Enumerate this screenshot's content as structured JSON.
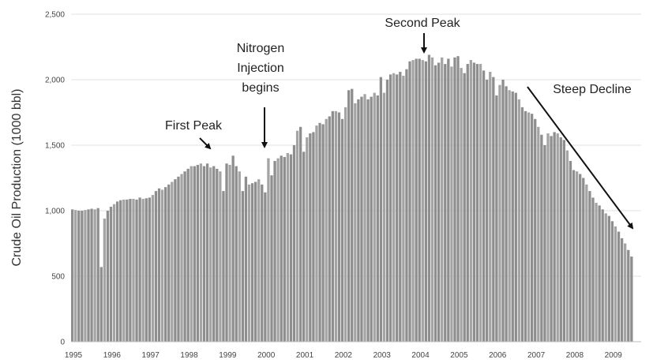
{
  "chart_data": {
    "type": "bar",
    "y_label": "Crude Oil Production (1000 bbl)",
    "color": "#8e8e8e",
    "ylim": [
      0,
      2500
    ],
    "yticks": [
      0,
      500,
      {
        "value": 1000,
        "label": "1,000"
      },
      {
        "value": 1500,
        "label": "1,500"
      },
      {
        "value": 2000,
        "label": "2,000"
      },
      {
        "value": 2500,
        "label": "2,500"
      }
    ],
    "grid": true,
    "categories": [
      "1995",
      null,
      null,
      null,
      null,
      null,
      null,
      null,
      null,
      null,
      null,
      null,
      "1996",
      null,
      null,
      null,
      null,
      null,
      null,
      null,
      null,
      null,
      null,
      null,
      "1997",
      null,
      null,
      null,
      null,
      null,
      null,
      null,
      null,
      null,
      null,
      null,
      "1998",
      null,
      null,
      null,
      null,
      null,
      null,
      null,
      null,
      null,
      null,
      null,
      "1999",
      null,
      null,
      null,
      null,
      null,
      null,
      null,
      null,
      null,
      null,
      null,
      "2000",
      null,
      null,
      null,
      null,
      null,
      null,
      null,
      null,
      null,
      null,
      null,
      "2001",
      null,
      null,
      null,
      null,
      null,
      null,
      null,
      null,
      null,
      null,
      null,
      "2002",
      null,
      null,
      null,
      null,
      null,
      null,
      null,
      null,
      null,
      null,
      null,
      "2003",
      null,
      null,
      null,
      null,
      null,
      null,
      null,
      null,
      null,
      null,
      null,
      "2004",
      null,
      null,
      null,
      null,
      null,
      null,
      null,
      null,
      null,
      null,
      null,
      "2005",
      null,
      null,
      null,
      null,
      null,
      null,
      null,
      null,
      null,
      null,
      null,
      "2006",
      null,
      null,
      null,
      null,
      null,
      null,
      null,
      null,
      null,
      null,
      null,
      "2007",
      null,
      null,
      null,
      null,
      null,
      null,
      null,
      null,
      null,
      null,
      null,
      "2008",
      null,
      null,
      null,
      null,
      null,
      null,
      null,
      null,
      null,
      null,
      null,
      "2009",
      null,
      null,
      null,
      null,
      null,
      null
    ],
    "values": [
      1010,
      1005,
      1000,
      1000,
      1005,
      1010,
      1015,
      1010,
      1020,
      570,
      940,
      1000,
      1030,
      1050,
      1070,
      1080,
      1085,
      1085,
      1090,
      1090,
      1085,
      1100,
      1090,
      1095,
      1100,
      1120,
      1150,
      1170,
      1160,
      1180,
      1200,
      1220,
      1240,
      1260,
      1280,
      1300,
      1320,
      1340,
      1340,
      1350,
      1360,
      1340,
      1360,
      1330,
      1340,
      1320,
      1300,
      1150,
      1360,
      1350,
      1420,
      1340,
      1300,
      1150,
      1260,
      1200,
      1210,
      1220,
      1240,
      1200,
      1140,
      1400,
      1270,
      1380,
      1400,
      1420,
      1410,
      1440,
      1430,
      1500,
      1610,
      1640,
      1450,
      1560,
      1590,
      1600,
      1650,
      1670,
      1660,
      1700,
      1720,
      1760,
      1760,
      1750,
      1700,
      1790,
      1920,
      1930,
      1820,
      1850,
      1870,
      1890,
      1850,
      1870,
      1900,
      1880,
      2020,
      1900,
      2000,
      2040,
      2050,
      2040,
      2060,
      2030,
      2080,
      2140,
      2150,
      2160,
      2160,
      2150,
      2140,
      2190,
      2170,
      2110,
      2130,
      2170,
      2120,
      2160,
      2100,
      2170,
      2180,
      2090,
      2050,
      2120,
      2150,
      2130,
      2120,
      2120,
      2070,
      2000,
      2060,
      2020,
      1880,
      1960,
      2000,
      1950,
      1920,
      1910,
      1900,
      1850,
      1790,
      1760,
      1750,
      1740,
      1700,
      1640,
      1580,
      1500,
      1590,
      1570,
      1600,
      1590,
      1560,
      1540,
      1460,
      1380,
      1310,
      1300,
      1280,
      1250,
      1200,
      1150,
      1100,
      1060,
      1040,
      1010,
      980,
      960,
      920,
      880,
      840,
      790,
      750,
      700,
      650
    ],
    "annotations": [
      {
        "lines": [
          "First Peak"
        ]
      },
      {
        "lines": [
          "Nitrogen",
          "Injection",
          "begins"
        ]
      },
      {
        "lines": [
          "Second Peak"
        ]
      },
      {
        "lines": [
          "Steep Decline"
        ]
      }
    ]
  }
}
